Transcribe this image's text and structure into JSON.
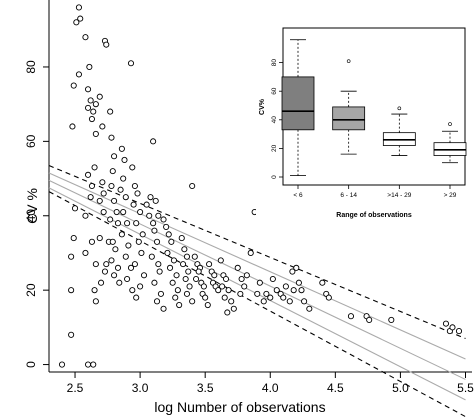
{
  "chart_data": [
    {
      "type": "scatter",
      "xlabel": "log Number of observations",
      "ylabel": "CV %",
      "xlim": [
        2.3,
        5.55
      ],
      "ylim": [
        -2,
        98
      ],
      "xticks": [
        "2.5",
        "3.0",
        "3.5",
        "4.0",
        "4.5",
        "5.0",
        "5.5"
      ],
      "yticks": [
        "0",
        "20",
        "40",
        "60",
        "80"
      ],
      "grid": false,
      "series": [
        {
          "points": [
            [
              2.4,
              0
            ],
            [
              2.47,
              8
            ],
            [
              2.53,
              96
            ],
            [
              2.54,
              93
            ],
            [
              2.51,
              92
            ],
            [
              2.53,
              78
            ],
            [
              2.49,
              75
            ],
            [
              2.48,
              64
            ],
            [
              2.5,
              42
            ],
            [
              2.49,
              34
            ],
            [
              2.47,
              29
            ],
            [
              2.47,
              20
            ],
            [
              2.58,
              88
            ],
            [
              2.61,
              80
            ],
            [
              2.6,
              74
            ],
            [
              2.62,
              71
            ],
            [
              2.6,
              69
            ],
            [
              2.64,
              68
            ],
            [
              2.63,
              66
            ],
            [
              2.66,
              70
            ],
            [
              2.66,
              62
            ],
            [
              2.65,
              53
            ],
            [
              2.6,
              51
            ],
            [
              2.63,
              48
            ],
            [
              2.62,
              45
            ],
            [
              2.58,
              40
            ],
            [
              2.63,
              33
            ],
            [
              2.58,
              30
            ],
            [
              2.66,
              27
            ],
            [
              2.65,
              20
            ],
            [
              2.66,
              17
            ],
            [
              2.6,
              0
            ],
            [
              2.64,
              0
            ],
            [
              2.69,
              72
            ],
            [
              2.71,
              64
            ],
            [
              2.73,
              87
            ],
            [
              2.74,
              86
            ],
            [
              2.71,
              49
            ],
            [
              2.72,
              46
            ],
            [
              2.69,
              44
            ],
            [
              2.72,
              41
            ],
            [
              2.69,
              34
            ],
            [
              2.76,
              33
            ],
            [
              2.74,
              27
            ],
            [
              2.73,
              25
            ],
            [
              2.7,
              22
            ],
            [
              2.77,
              68
            ],
            [
              2.78,
              61
            ],
            [
              2.8,
              56
            ],
            [
              2.79,
              52
            ],
            [
              2.78,
              48
            ],
            [
              2.8,
              44
            ],
            [
              2.82,
              41
            ],
            [
              2.77,
              39
            ],
            [
              2.83,
              38
            ],
            [
              2.79,
              33
            ],
            [
              2.81,
              31
            ],
            [
              2.78,
              28
            ],
            [
              2.83,
              26
            ],
            [
              2.8,
              24
            ],
            [
              2.84,
              22
            ],
            [
              2.86,
              58
            ],
            [
              2.88,
              55
            ],
            [
              2.87,
              50
            ],
            [
              2.85,
              47
            ],
            [
              2.89,
              45
            ],
            [
              2.87,
              41
            ],
            [
              2.9,
              38
            ],
            [
              2.86,
              35
            ],
            [
              2.91,
              32
            ],
            [
              2.89,
              29
            ],
            [
              2.93,
              26
            ],
            [
              2.9,
              23
            ],
            [
              2.94,
              20
            ],
            [
              2.93,
              81
            ],
            [
              2.94,
              53
            ],
            [
              2.96,
              48
            ],
            [
              2.98,
              46
            ],
            [
              2.95,
              43
            ],
            [
              3.0,
              41
            ],
            [
              2.97,
              38
            ],
            [
              3.02,
              35
            ],
            [
              2.99,
              33
            ],
            [
              3.01,
              30
            ],
            [
              2.96,
              27
            ],
            [
              3.03,
              24
            ],
            [
              3.0,
              21
            ],
            [
              2.97,
              18
            ],
            [
              3.05,
              43
            ],
            [
              3.07,
              40
            ],
            [
              3.1,
              38
            ],
            [
              3.08,
              45
            ],
            [
              3.12,
              44
            ],
            [
              3.11,
              36
            ],
            [
              3.13,
              33
            ],
            [
              3.09,
              29
            ],
            [
              3.14,
              27
            ],
            [
              3.15,
              25
            ],
            [
              3.11,
              22
            ],
            [
              3.16,
              19
            ],
            [
              3.13,
              17
            ],
            [
              3.18,
              15
            ],
            [
              3.1,
              60
            ],
            [
              3.14,
              40
            ],
            [
              3.18,
              39
            ],
            [
              3.2,
              37
            ],
            [
              3.22,
              35
            ],
            [
              3.24,
              33
            ],
            [
              3.21,
              30
            ],
            [
              3.26,
              28
            ],
            [
              3.23,
              26
            ],
            [
              3.28,
              24
            ],
            [
              3.25,
              22
            ],
            [
              3.29,
              20
            ],
            [
              3.27,
              18
            ],
            [
              3.3,
              16
            ],
            [
              3.32,
              34
            ],
            [
              3.34,
              31
            ],
            [
              3.36,
              29
            ],
            [
              3.33,
              27
            ],
            [
              3.37,
              25
            ],
            [
              3.35,
              23
            ],
            [
              3.38,
              21
            ],
            [
              3.36,
              19
            ],
            [
              3.4,
              17
            ],
            [
              3.4,
              48
            ],
            [
              3.42,
              29
            ],
            [
              3.44,
              27
            ],
            [
              3.46,
              26
            ],
            [
              3.45,
              25
            ],
            [
              3.43,
              23
            ],
            [
              3.47,
              22
            ],
            [
              3.49,
              21
            ],
            [
              3.48,
              19
            ],
            [
              3.5,
              18
            ],
            [
              3.52,
              16
            ],
            [
              3.53,
              27
            ],
            [
              3.55,
              25
            ],
            [
              3.57,
              24
            ],
            [
              3.56,
              22
            ],
            [
              3.58,
              21
            ],
            [
              3.6,
              20
            ],
            [
              3.62,
              28
            ],
            [
              3.64,
              24
            ],
            [
              3.66,
              23
            ],
            [
              3.63,
              21
            ],
            [
              3.68,
              20
            ],
            [
              3.65,
              18
            ],
            [
              3.7,
              17
            ],
            [
              3.72,
              15
            ],
            [
              3.67,
              14
            ],
            [
              3.75,
              26
            ],
            [
              3.78,
              23
            ],
            [
              3.8,
              21
            ],
            [
              3.77,
              19
            ],
            [
              3.82,
              24
            ],
            [
              3.85,
              30
            ],
            [
              3.88,
              41
            ],
            [
              3.9,
              19
            ],
            [
              3.92,
              22
            ],
            [
              3.95,
              17
            ],
            [
              3.97,
              19
            ],
            [
              4.0,
              18
            ],
            [
              4.02,
              23
            ],
            [
              4.05,
              20
            ],
            [
              4.08,
              19
            ],
            [
              4.1,
              18
            ],
            [
              4.12,
              21
            ],
            [
              4.15,
              17
            ],
            [
              4.17,
              25
            ],
            [
              4.2,
              26
            ],
            [
              4.22,
              22
            ],
            [
              4.24,
              20
            ],
            [
              4.26,
              17
            ],
            [
              4.18,
              20
            ],
            [
              4.3,
              15
            ],
            [
              4.4,
              22
            ],
            [
              4.43,
              19
            ],
            [
              4.45,
              18
            ],
            [
              4.62,
              13
            ],
            [
              4.74,
              13
            ],
            [
              4.76,
              12
            ],
            [
              4.93,
              12
            ],
            [
              5.35,
              11
            ],
            [
              5.38,
              9
            ],
            [
              5.4,
              10
            ],
            [
              5.45,
              9
            ]
          ]
        }
      ],
      "regression": {
        "fit": [
          [
            2.3,
            49.5
          ],
          [
            5.5,
            -4.0
          ]
        ],
        "upper": [
          [
            2.3,
            53.5
          ],
          [
            5.5,
            7.0
          ]
        ],
        "lower": [
          [
            2.3,
            46.5
          ],
          [
            5.5,
            -14.0
          ]
        ],
        "grey_upper": [
          [
            2.3,
            51.5
          ],
          [
            5.5,
            1.5
          ]
        ],
        "grey_lower": [
          [
            2.3,
            47.5
          ],
          [
            5.5,
            -9.5
          ]
        ]
      }
    },
    {
      "type": "box",
      "xlabel": "Range of observations",
      "ylabel": "CV%",
      "categories": [
        "< 6",
        "6 - 14",
        ">14 - 29",
        "> 29"
      ],
      "ylim": [
        0,
        100
      ],
      "yticks": [
        "0",
        "20",
        "40",
        "60",
        "80"
      ],
      "boxes": [
        {
          "whisker_low": 1,
          "q1": 33,
          "median": 46,
          "q3": 70,
          "whisker_high": 96,
          "outliers": [],
          "fill": "#7f7f7f"
        },
        {
          "whisker_low": 16,
          "q1": 33,
          "median": 40,
          "q3": 49,
          "whisker_high": 60,
          "outliers": [
            81
          ],
          "fill": "#a6a6a6"
        },
        {
          "whisker_low": 15,
          "q1": 22,
          "median": 26,
          "q3": 31,
          "whisker_high": 44,
          "outliers": [
            48
          ],
          "fill": "#ffffff"
        },
        {
          "whisker_low": 10,
          "q1": 15,
          "median": 19,
          "q3": 24,
          "whisker_high": 32,
          "outliers": [
            37
          ],
          "fill": "#ffffff"
        }
      ]
    }
  ]
}
